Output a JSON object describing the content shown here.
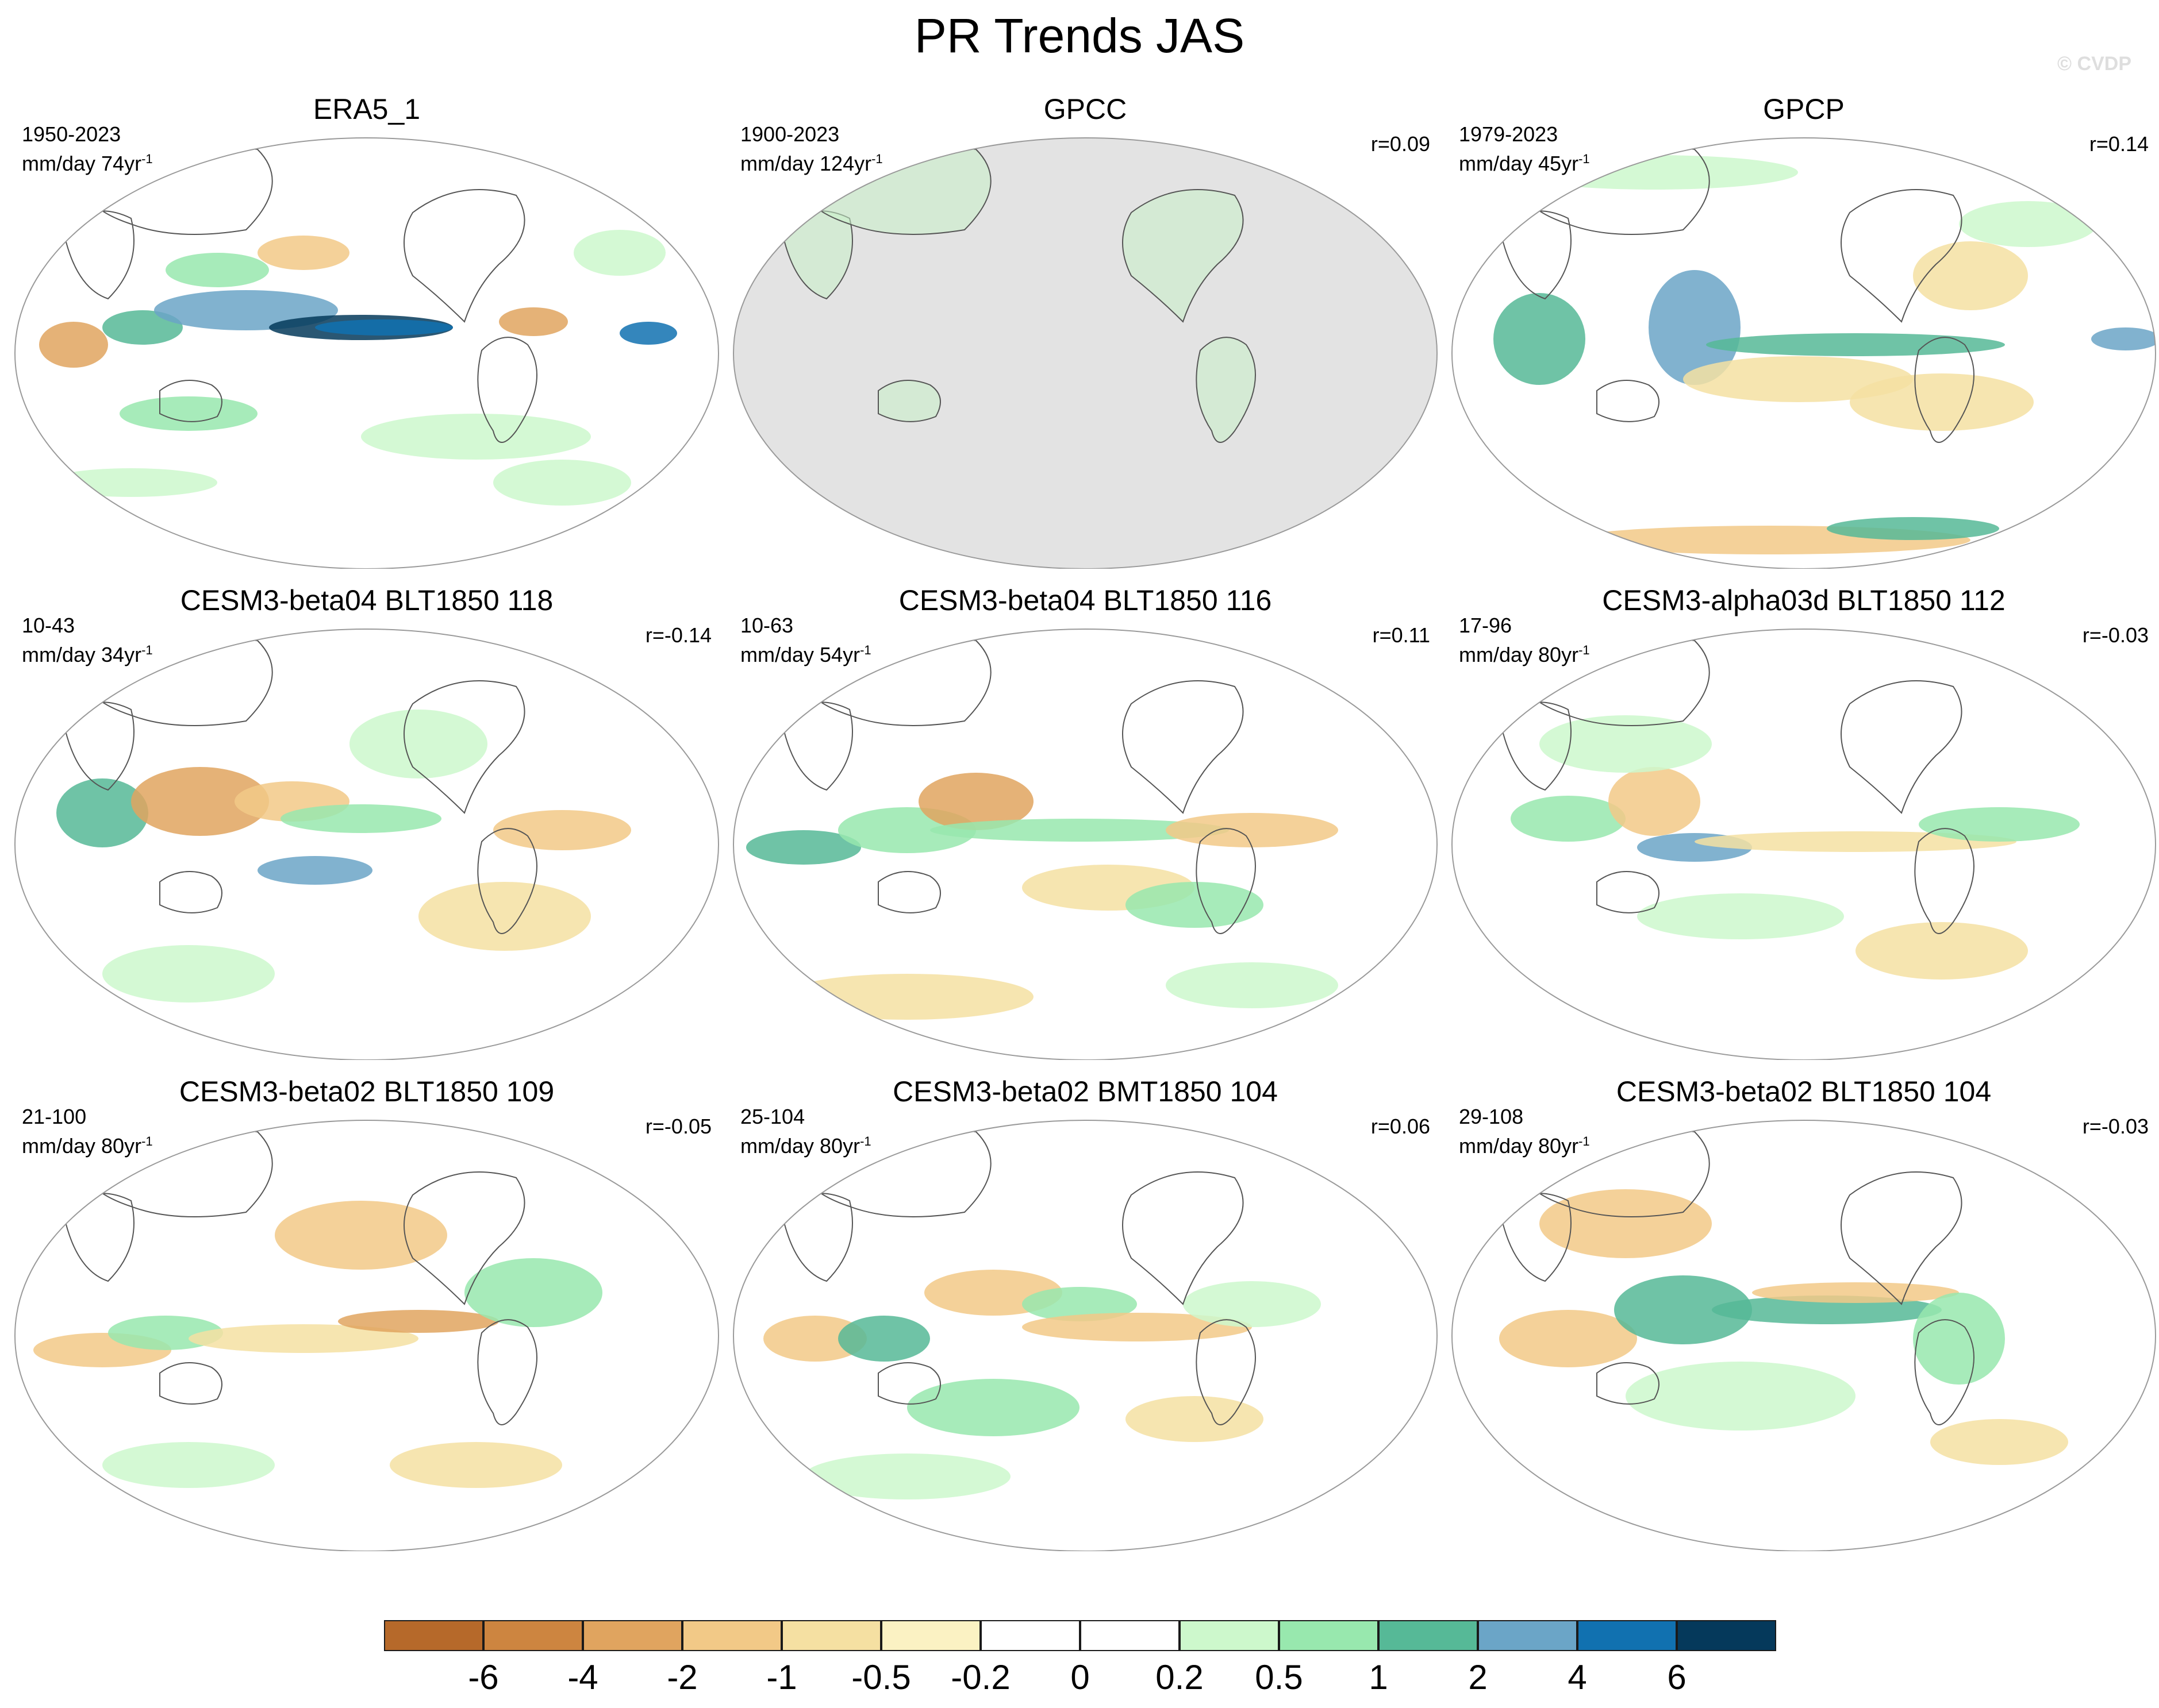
{
  "title": "PR Trends JAS",
  "watermark": "© CVDP",
  "panels": [
    {
      "title": "ERA5_1",
      "period": "1950-2023",
      "units": "mm/day 74yr",
      "units_sup": "-1",
      "corr": ""
    },
    {
      "title": "GPCC",
      "period": "1900-2023",
      "units": "mm/day 124yr",
      "units_sup": "-1",
      "corr": "r=0.09"
    },
    {
      "title": "GPCP",
      "period": "1979-2023",
      "units": "mm/day 45yr",
      "units_sup": "-1",
      "corr": "r=0.14"
    },
    {
      "title": "CESM3-beta04 BLT1850 118",
      "period": "10-43",
      "units": "mm/day 34yr",
      "units_sup": "-1",
      "corr": "r=-0.14"
    },
    {
      "title": "CESM3-beta04 BLT1850 116",
      "period": "10-63",
      "units": "mm/day 54yr",
      "units_sup": "-1",
      "corr": "r=0.11"
    },
    {
      "title": "CESM3-alpha03d BLT1850 112",
      "period": "17-96",
      "units": "mm/day 80yr",
      "units_sup": "-1",
      "corr": "r=-0.03"
    },
    {
      "title": "CESM3-beta02 BLT1850 109",
      "period": "21-100",
      "units": "mm/day 80yr",
      "units_sup": "-1",
      "corr": "r=-0.05"
    },
    {
      "title": "CESM3-beta02 BMT1850 104",
      "period": "25-104",
      "units": "mm/day 80yr",
      "units_sup": "-1",
      "corr": "r=0.06"
    },
    {
      "title": "CESM3-beta02 BLT1850 104",
      "period": "29-108",
      "units": "mm/day 80yr",
      "units_sup": "-1",
      "corr": "r=-0.03"
    }
  ],
  "colorbar": {
    "levels": [
      "-6",
      "-4",
      "-2",
      "-1",
      "-0.5",
      "-0.2",
      "0",
      "0.2",
      "0.5",
      "1",
      "2",
      "4",
      "6"
    ],
    "colors": [
      "#b6692a",
      "#cd8540",
      "#e0a45f",
      "#f2c987",
      "#f5e0a2",
      "#fbf2c3",
      "#ffffff",
      "#ffffff",
      "#cdf8cc",
      "#98e8ae",
      "#56b997",
      "#6ba5c7",
      "#1171b0",
      "#05395b"
    ]
  }
}
